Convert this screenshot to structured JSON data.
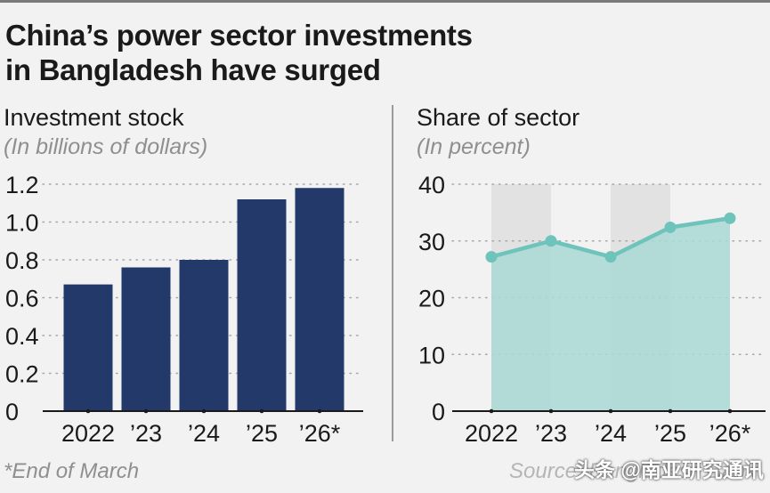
{
  "title_line1": "China’s power sector investments",
  "title_line2": "in Bangladesh have surged",
  "footnote": "*End of March",
  "source": "Source: Bangladesh Bank",
  "watermark": "头条 @南亚研究通讯",
  "colors": {
    "bar": "#22396a",
    "area": "#a9d9d5",
    "line": "#6ec3bb",
    "band": "#e2e2e2",
    "grid": "#a8a8a8"
  },
  "chart_data": [
    {
      "type": "bar",
      "title": "Investment stock",
      "subtitle": "(In billions of dollars)",
      "categories": [
        "2022",
        "’23",
        "’24",
        "’25",
        "’26*"
      ],
      "values": [
        0.67,
        0.76,
        0.8,
        1.12,
        1.18
      ],
      "ylim": [
        0,
        1.2
      ],
      "yticks": [
        "0",
        "0.2",
        "0.4",
        "0.6",
        "0.8",
        "1.0",
        "1.2"
      ],
      "grid": true
    },
    {
      "type": "area",
      "title": "Share of sector",
      "subtitle": "(In percent)",
      "categories": [
        "2022",
        "’23",
        "’24",
        "’25",
        "’26*"
      ],
      "values": [
        27.2,
        30.0,
        27.2,
        32.4,
        34.0
      ],
      "ylim": [
        0,
        40
      ],
      "yticks": [
        "0",
        "10",
        "20",
        "30",
        "40"
      ],
      "shaded_bands": [
        [
          "2022",
          "’23"
        ],
        [
          "’24",
          "’25"
        ]
      ],
      "grid": true
    }
  ]
}
